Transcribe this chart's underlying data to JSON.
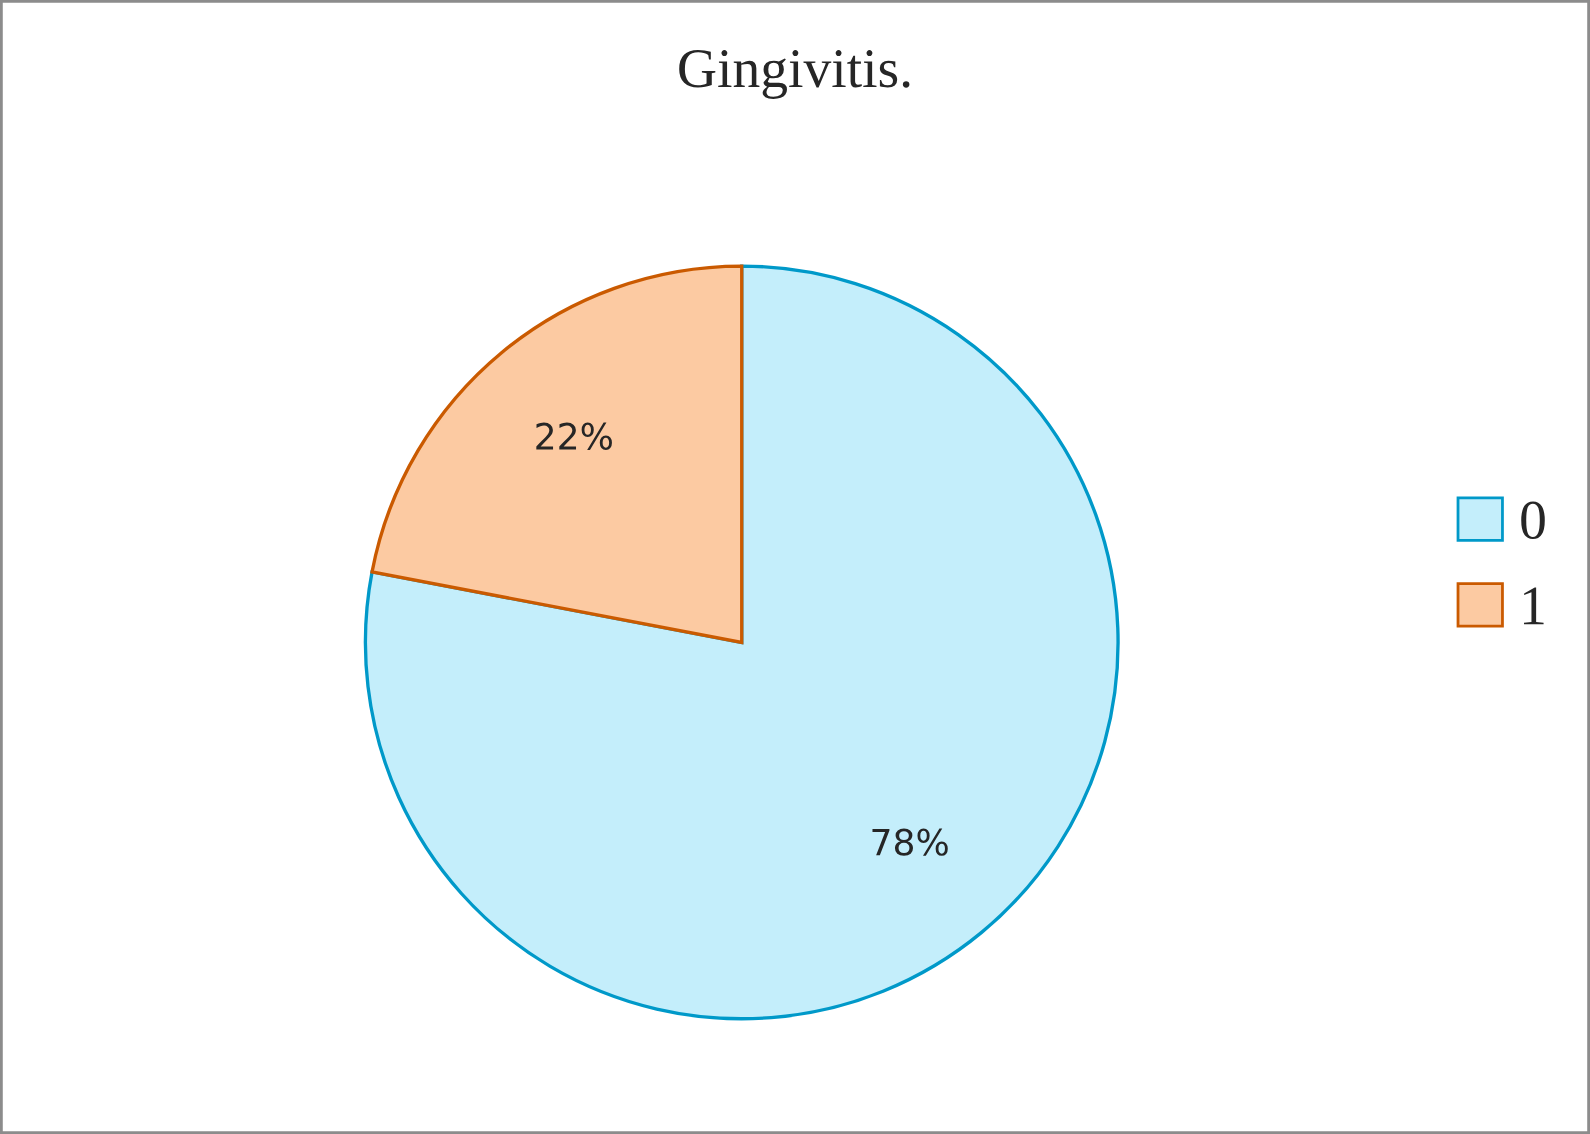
{
  "chart_data": {
    "type": "pie",
    "title": "Gingivitis.",
    "categories": [
      "0",
      "1"
    ],
    "values": [
      78,
      22
    ],
    "value_labels": [
      "78%",
      "22%"
    ],
    "colors": [
      "#c4eefb",
      "#fccaa2"
    ],
    "legend": "right"
  }
}
